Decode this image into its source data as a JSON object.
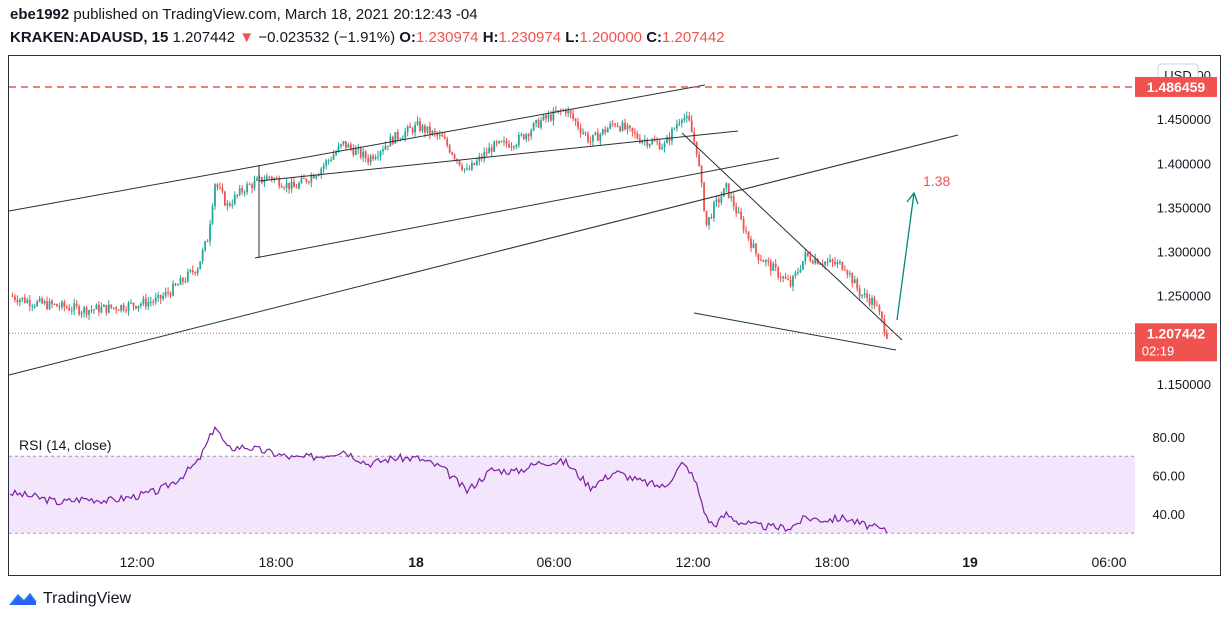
{
  "header": {
    "author": "ebe1992",
    "published_text": "published on TradingView.com, March 18, 2021 20:12:43 -04",
    "symbol": "KRAKEN:ADAUSD, 15",
    "last_price": "1.207442",
    "change_arrow": "▼",
    "change": "−0.023532 (−1.91%)",
    "open_label": "O:",
    "open": "1.230974",
    "high_label": "H:",
    "high": "1.230974",
    "low_label": "L:",
    "low": "1.200000",
    "close_label": "C:",
    "close": "1.207442"
  },
  "currency_button": "USD",
  "price_axis": {
    "ticks": [
      "1.500000",
      "1.450000",
      "1.400000",
      "1.350000",
      "1.300000",
      "1.250000",
      "1.150000"
    ],
    "tick_values": [
      1.5,
      1.45,
      1.4,
      1.35,
      1.3,
      1.25,
      1.15
    ],
    "resistance_label": "1.486459",
    "resistance_value": 1.486459,
    "current_label": "1.207442",
    "current_value": 1.207442,
    "countdown": "02:19"
  },
  "time_axis": {
    "labels": [
      "12:00",
      "18:00",
      "18",
      "06:00",
      "12:00",
      "18:00",
      "19",
      "06:00"
    ],
    "bold": [
      false,
      false,
      true,
      false,
      false,
      false,
      true,
      false
    ]
  },
  "annotation": {
    "target_label": "1.38",
    "target_value": 1.38
  },
  "rsi": {
    "label": "RSI (14, close)",
    "ticks": [
      "80.00",
      "60.00",
      "40.00"
    ],
    "tick_values": [
      80,
      60,
      40
    ],
    "band": [
      30,
      70
    ]
  },
  "colors": {
    "up": "#26a69a",
    "down": "#ef5350",
    "resistance": "#ef5350",
    "rsi_line": "#7b1fa2",
    "rsi_band": "#f3e5fb",
    "trend_lines": "#2a2e39",
    "arrow": "#00897b"
  },
  "footer": {
    "brand": "TradingView",
    "logo_icon": "tradingview-logo-icon"
  },
  "chart_data": [
    {
      "type": "candlestick",
      "title": "KRAKEN:ADAUSD, 15",
      "y_range": [
        1.12,
        1.52
      ],
      "ohlc_close_path": [
        [
          0,
          1.25
        ],
        [
          10,
          1.242
        ],
        [
          20,
          1.238
        ],
        [
          30,
          1.234
        ],
        [
          40,
          1.236
        ],
        [
          50,
          1.24
        ],
        [
          60,
          1.245
        ],
        [
          68,
          1.262
        ],
        [
          76,
          1.283
        ],
        [
          80,
          1.315
        ],
        [
          83,
          1.378
        ],
        [
          88,
          1.352
        ],
        [
          95,
          1.372
        ],
        [
          105,
          1.385
        ],
        [
          115,
          1.372
        ],
        [
          125,
          1.392
        ],
        [
          135,
          1.422
        ],
        [
          145,
          1.405
        ],
        [
          155,
          1.428
        ],
        [
          165,
          1.442
        ],
        [
          175,
          1.428
        ],
        [
          185,
          1.39
        ],
        [
          195,
          1.418
        ],
        [
          205,
          1.425
        ],
        [
          215,
          1.448
        ],
        [
          225,
          1.461
        ],
        [
          235,
          1.425
        ],
        [
          245,
          1.446
        ],
        [
          255,
          1.428
        ],
        [
          265,
          1.42
        ],
        [
          272,
          1.455
        ],
        [
          275,
          1.445
        ],
        [
          278,
          1.415
        ],
        [
          282,
          1.33
        ],
        [
          285,
          1.35
        ],
        [
          290,
          1.372
        ],
        [
          295,
          1.34
        ],
        [
          302,
          1.298
        ],
        [
          310,
          1.278
        ],
        [
          316,
          1.262
        ],
        [
          322,
          1.295
        ],
        [
          330,
          1.288
        ],
        [
          338,
          1.284
        ],
        [
          344,
          1.253
        ],
        [
          350,
          1.242
        ],
        [
          355,
          1.207
        ]
      ]
    },
    {
      "type": "line",
      "title": "RSI (14, close)",
      "y_range": [
        25,
        90
      ],
      "values_path": [
        [
          0,
          51
        ],
        [
          10,
          49
        ],
        [
          20,
          46
        ],
        [
          30,
          48
        ],
        [
          40,
          47
        ],
        [
          50,
          49
        ],
        [
          60,
          52
        ],
        [
          68,
          58
        ],
        [
          76,
          67
        ],
        [
          80,
          77
        ],
        [
          83,
          86
        ],
        [
          88,
          74
        ],
        [
          95,
          75
        ],
        [
          105,
          72
        ],
        [
          115,
          69
        ],
        [
          125,
          70
        ],
        [
          135,
          73
        ],
        [
          145,
          66
        ],
        [
          155,
          69
        ],
        [
          165,
          69
        ],
        [
          175,
          64
        ],
        [
          185,
          52
        ],
        [
          195,
          63
        ],
        [
          205,
          62
        ],
        [
          215,
          67
        ],
        [
          225,
          67
        ],
        [
          235,
          54
        ],
        [
          245,
          62
        ],
        [
          255,
          57
        ],
        [
          265,
          54
        ],
        [
          272,
          66
        ],
        [
          275,
          63
        ],
        [
          278,
          55
        ],
        [
          282,
          38
        ],
        [
          285,
          34
        ],
        [
          290,
          40
        ],
        [
          295,
          36
        ],
        [
          302,
          34
        ],
        [
          310,
          33
        ],
        [
          316,
          33
        ],
        [
          322,
          38
        ],
        [
          330,
          37
        ],
        [
          338,
          38
        ],
        [
          344,
          35
        ],
        [
          350,
          33
        ],
        [
          355,
          31
        ]
      ]
    }
  ]
}
